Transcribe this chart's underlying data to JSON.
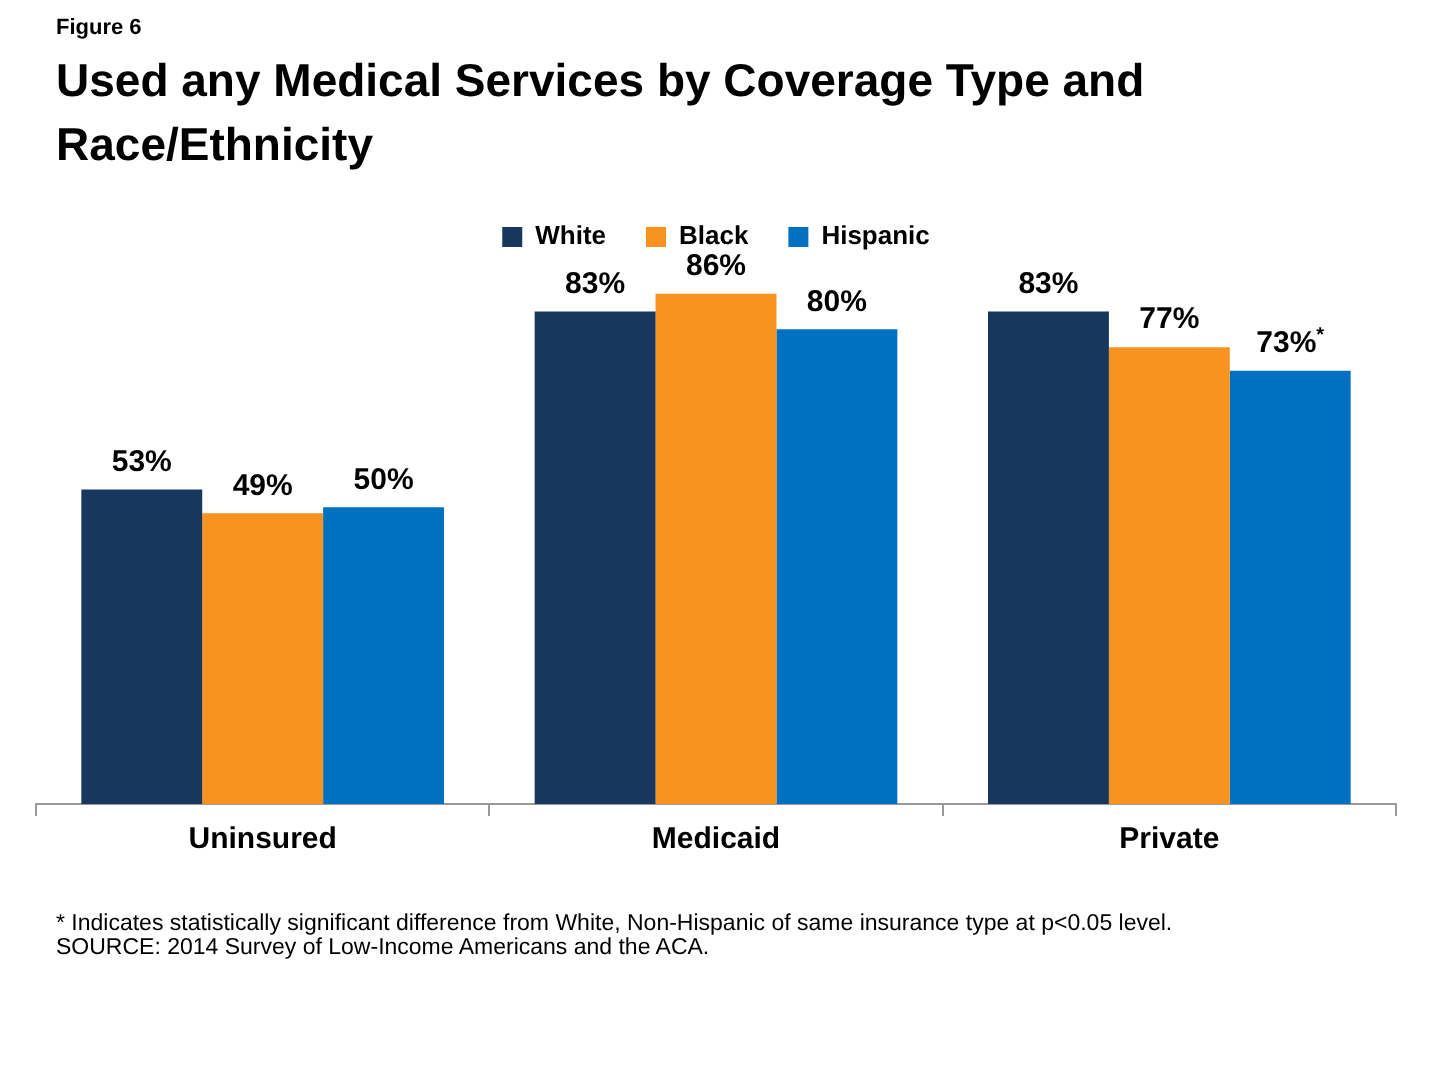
{
  "chart_data": {
    "type": "bar",
    "subtitle": "Figure 6",
    "title": "Used any Medical Services by Coverage Type and Race/Ethnicity",
    "categories": [
      "Uninsured",
      "Medicaid",
      "Private"
    ],
    "series": [
      {
        "name": "White",
        "color": "#17375e",
        "values": [
          53,
          83,
          83
        ],
        "value_labels": [
          "53%",
          "83%",
          "83%"
        ]
      },
      {
        "name": "Black",
        "color": "#f7931e",
        "values": [
          49,
          86,
          77
        ],
        "value_labels": [
          "49%",
          "86%",
          "77%"
        ]
      },
      {
        "name": "Hispanic",
        "color": "#0070c0",
        "values": [
          50,
          80,
          73
        ],
        "value_labels": [
          "50%",
          "80%",
          "73%$^{*}$"
        ]
      }
    ],
    "tick_labels": "x",
    "legend": "top",
    "grid": false,
    "annotations": [
      "* Indicates statistically significant difference from White, Non-Hispanic of same insurance type at p<0.05 level.",
      "SOURCE: 2014 Survey of Low-Income Americans and the ACA."
    ]
  }
}
